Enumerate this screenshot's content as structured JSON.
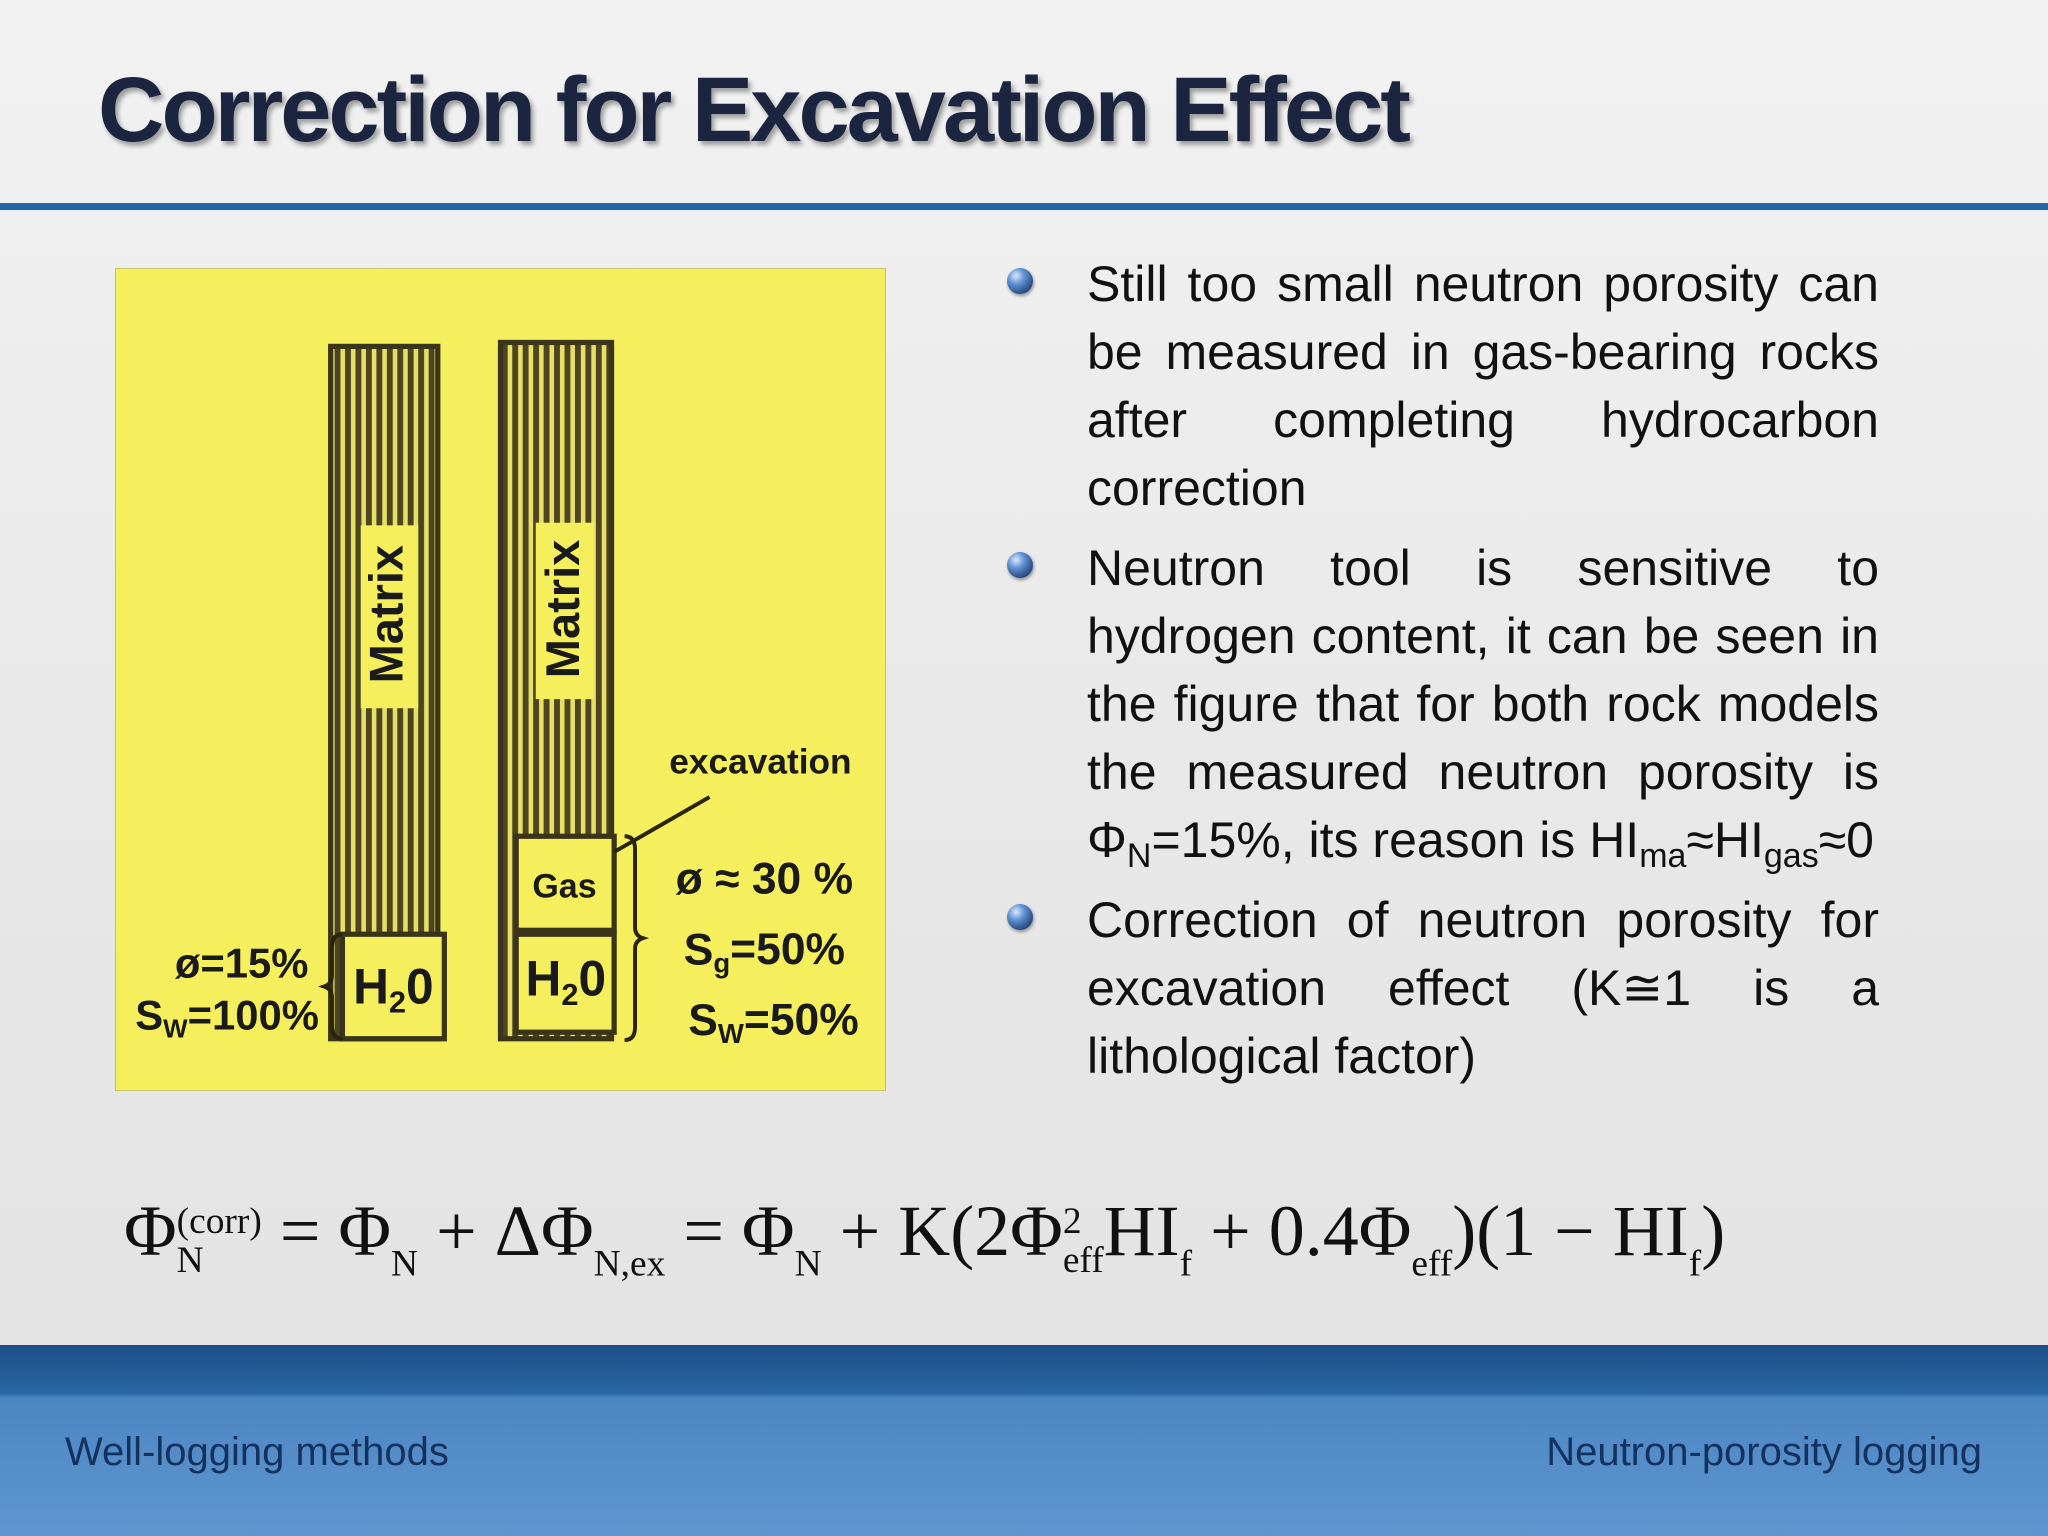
{
  "title": "Correction for Excavation Effect",
  "figure": {
    "matrix_left": "Matrix",
    "matrix_right": "Matrix",
    "excavation": "excavation",
    "gas": "Gas",
    "water_left": [
      {
        "text": "H"
      },
      {
        "sub": "2"
      },
      {
        "text": "0"
      }
    ],
    "water_right": [
      {
        "text": "H"
      },
      {
        "sub": "2"
      },
      {
        "text": "0"
      }
    ],
    "left_porosity": [
      {
        "text": "ø=15%"
      }
    ],
    "left_saturation": [
      {
        "text": "S"
      },
      {
        "sub": "W"
      },
      {
        "text": "=100%"
      }
    ],
    "right_porosity": [
      {
        "text": "ø ≈ 30 %"
      }
    ],
    "right_gas_saturation": [
      {
        "text": "S"
      },
      {
        "sub": "g"
      },
      {
        "text": "=50%"
      }
    ],
    "right_water_saturation": [
      {
        "text": "S"
      },
      {
        "sub": "W"
      },
      {
        "text": "=50%"
      }
    ]
  },
  "bullets": [
    [
      {
        "text": "Still too small neutron porosity can be measured in gas-bearing rocks after completing hydrocarbon correction"
      }
    ],
    [
      {
        "text": "Neutron tool is sensitive to hydrogen content, it can be seen in the figure that for both rock models the measured neutron porosity is Φ"
      },
      {
        "sub": "N"
      },
      {
        "text": "=15%, its reason is HI"
      },
      {
        "sub": "ma"
      },
      {
        "text": "≈HI"
      },
      {
        "sub": "gas"
      },
      {
        "text": "≈0"
      }
    ],
    [
      {
        "text": "Correction of neutron porosity for excavation effect (K≅1 is a lithological factor)"
      }
    ]
  ],
  "formula": [
    {
      "text": "Φ"
    },
    {
      "sup": "(corr)",
      "sub": "N"
    },
    {
      "text": " = Φ"
    },
    {
      "sub": "N"
    },
    {
      "text": " + ΔΦ"
    },
    {
      "sub": "N,ex"
    },
    {
      "text": " = Φ"
    },
    {
      "sub": "N"
    },
    {
      "text": " + K(2Φ"
    },
    {
      "sup": "2",
      "sub": "eff"
    },
    {
      "text": "HI"
    },
    {
      "sub": "f"
    },
    {
      "text": " + 0.4Φ"
    },
    {
      "sub": "eff"
    },
    {
      "text": ")(1 − HI"
    },
    {
      "sub": "f"
    },
    {
      "text": ")"
    }
  ],
  "footer": {
    "left": "Well-logging methods",
    "right": "Neutron-porosity logging"
  }
}
